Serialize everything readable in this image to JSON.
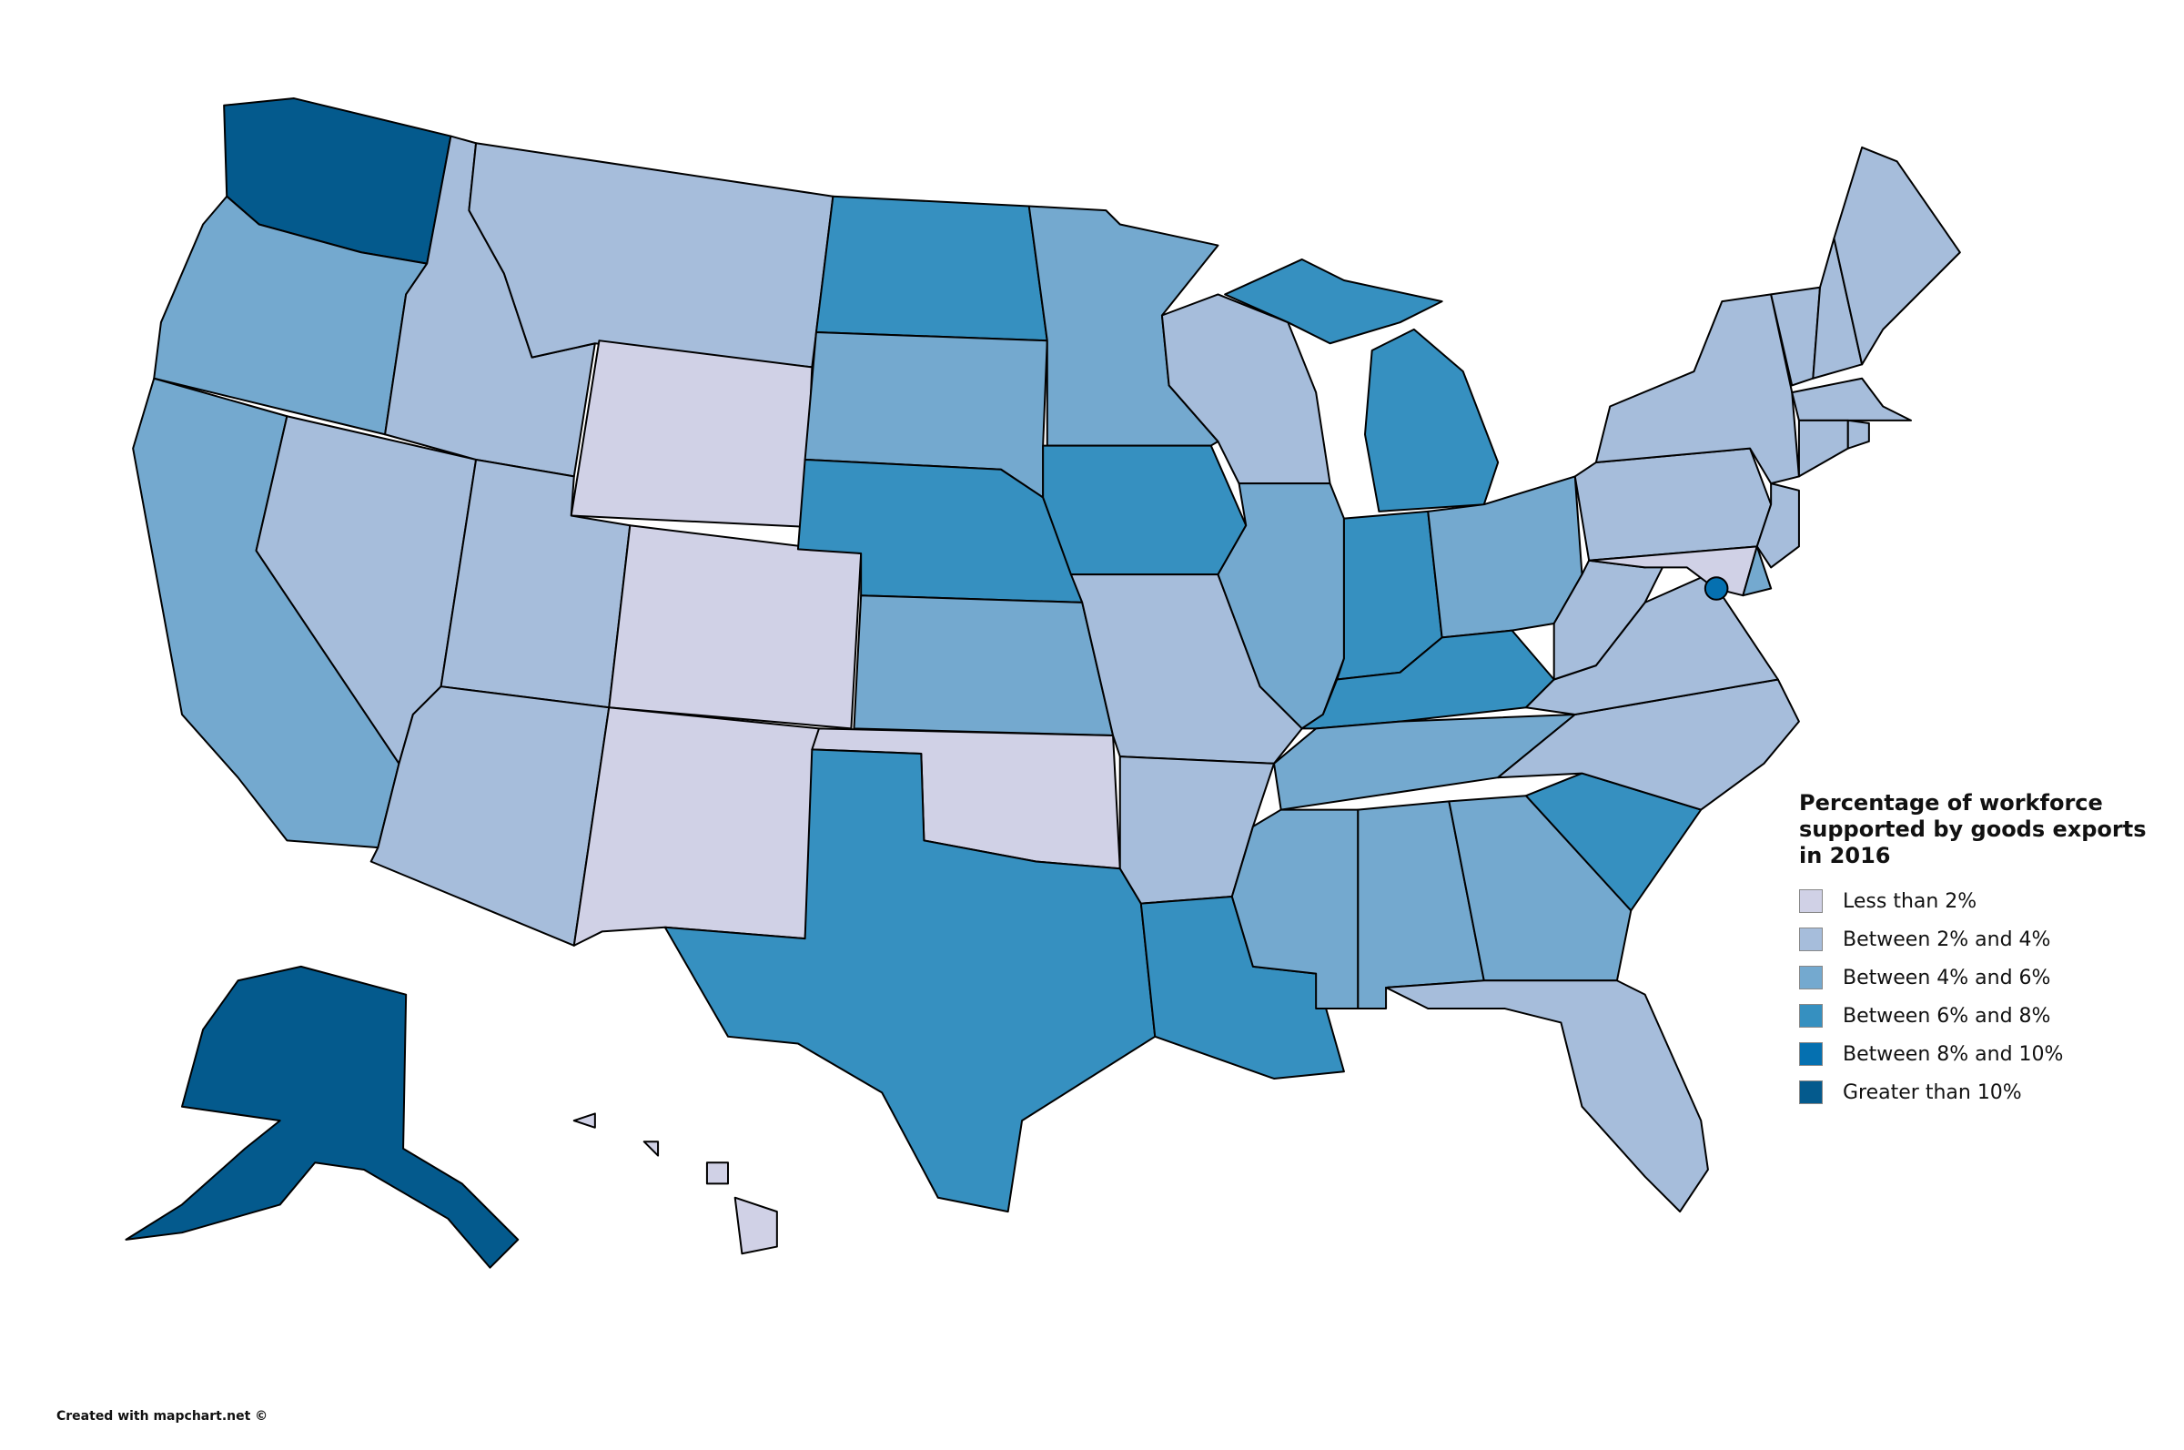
{
  "legend": {
    "title": "Percentage of workforce supported by goods exports in 2016",
    "items": [
      {
        "label": "Less than 2%",
        "color": "#d0d1e6"
      },
      {
        "label": "Between 2% and 4%",
        "color": "#a6bddb"
      },
      {
        "label": "Between 4% and 6%",
        "color": "#74a9cf"
      },
      {
        "label": "Between 6% and 8%",
        "color": "#3690c0"
      },
      {
        "label": "Between 8% and 10%",
        "color": "#0570b0"
      },
      {
        "label": "Greater than 10%",
        "color": "#045a8d"
      }
    ]
  },
  "regions": [
    5,
    2,
    2,
    1,
    1,
    1,
    0,
    1,
    0,
    1,
    0,
    3,
    2,
    3,
    2,
    0,
    3,
    2,
    3,
    1,
    1,
    3,
    1,
    2,
    3,
    3,
    3,
    2,
    3,
    2,
    2,
    2,
    2,
    1,
    3,
    1,
    1,
    1,
    1,
    1,
    0,
    2,
    1,
    1,
    1,
    1,
    1,
    1,
    1,
    4,
    5,
    0,
    0,
    0,
    0
  ],
  "credit": "Created with mapchart.net ©"
}
